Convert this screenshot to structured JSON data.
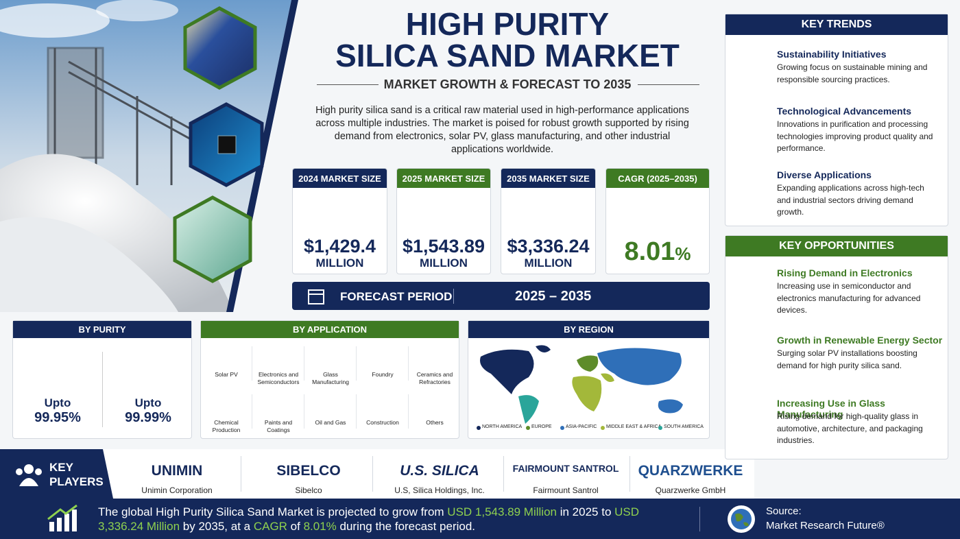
{
  "header": {
    "title_line1": "HIGH PURITY",
    "title_line2": "SILICA SAND MARKET",
    "subtitle": "MARKET GROWTH & FORECAST TO 2035",
    "description": "High purity silica sand is a critical raw material used in high-performance applications across multiple industries. The market is poised for robust growth supported by rising demand from electronics, solar PV, glass manufacturing, and other industrial applications worldwide."
  },
  "stats": [
    {
      "label": "2024 MARKET SIZE",
      "value": "$1,429.4",
      "unit": "MILLION"
    },
    {
      "label": "2025 MARKET SIZE",
      "value": "$1,543.89",
      "unit": "MILLION"
    },
    {
      "label": "2035 MARKET SIZE",
      "value": "$3,336.24",
      "unit": "MILLION"
    },
    {
      "label": "CAGR (2025–2035)",
      "value": "8.01",
      "unit": "%"
    }
  ],
  "forecast": {
    "label": "FORECAST PERIOD",
    "value": "2025 – 2035"
  },
  "by_purity": {
    "title": "BY PURITY",
    "items": [
      {
        "prefix": "Upto",
        "value": "99.95%"
      },
      {
        "prefix": "Upto",
        "value": "99.99%"
      }
    ]
  },
  "by_application": {
    "title": "BY APPLICATION",
    "items": [
      "Solar PV",
      "Electronics and Semiconductors",
      "Glass Manufacturing",
      "Foundry",
      "Ceramics and Refractories",
      "Chemical Production",
      "Paints and Coatings",
      "Oil and Gas",
      "Construction",
      "Others"
    ]
  },
  "by_region": {
    "title": "BY REGION",
    "legend": [
      {
        "name": "NORTH AMERICA",
        "color": "#14285a"
      },
      {
        "name": "EUROPE",
        "color": "#5e8c2a"
      },
      {
        "name": "ASIA-PACIFIC",
        "color": "#2f6fb8"
      },
      {
        "name": "MIDDLE EAST & AFRICA",
        "color": "#a3b83a"
      },
      {
        "name": "SOUTH AMERICA",
        "color": "#2aa59a"
      }
    ]
  },
  "key_players": {
    "title_line1": "KEY",
    "title_line2": "PLAYERS",
    "players": [
      {
        "logo": "UNIMIN",
        "name": "Unimin Corporation"
      },
      {
        "logo": "SIBELCO",
        "name": "Sibelco"
      },
      {
        "logo": "U.S. SILICA",
        "name": "U.S, Silica Holdings, Inc."
      },
      {
        "logo": "FAIRMOUNT SANTROL",
        "name": "Fairmount Santrol"
      },
      {
        "logo": "QUARZWERKE",
        "name": "Quarzwerke GmbH"
      }
    ]
  },
  "summary": [
    {
      "text": "The global ",
      "color": "#ffffff"
    },
    {
      "text": "High Purity Silica Sand Market",
      "color": "#ffffff"
    },
    {
      "text": " is projected to grow from ",
      "color": "#ffffff"
    },
    {
      "text": "USD 1,543.89 Million",
      "color": "#8fd14f"
    },
    {
      "text": " in 2025 to ",
      "color": "#ffffff"
    },
    {
      "text": "USD 3,336.24 Million",
      "color": "#8fd14f"
    },
    {
      "text": " by 2035, at a ",
      "color": "#ffffff"
    },
    {
      "text": "CAGR",
      "color": "#8fd14f"
    },
    {
      "text": " of ",
      "color": "#ffffff"
    },
    {
      "text": "8.01%",
      "color": "#8fd14f"
    },
    {
      "text": " during the forecast period.",
      "color": "#ffffff"
    }
  ],
  "source": {
    "label": "Source:",
    "value": "Market Research Future®"
  },
  "key_trends": {
    "title": "KEY TRENDS",
    "items": [
      {
        "title": "Sustainability Initiatives",
        "text": "Growing focus on sustainable mining and responsible sourcing practices."
      },
      {
        "title": "Technological Advancements",
        "text": "Innovations in purification and processing technologies improving product quality and performance."
      },
      {
        "title": "Diverse Applications",
        "text": "Expanding applications across high-tech and industrial sectors driving demand growth."
      }
    ]
  },
  "key_opportunities": {
    "title": "KEY OPPORTUNITIES",
    "items": [
      {
        "title": "Rising Demand in Electronics",
        "text": "Increasing use in semiconductor and electronics manufacturing for advanced devices."
      },
      {
        "title": "Growth in Renewable Energy Sector",
        "text": "Surging solar PV installations boosting demand for high purity silica sand."
      },
      {
        "title": "Increasing Use in Glass Manufacturing",
        "text": "Rising demand for high-quality glass in automotive, architecture, and packaging industries."
      }
    ]
  }
}
